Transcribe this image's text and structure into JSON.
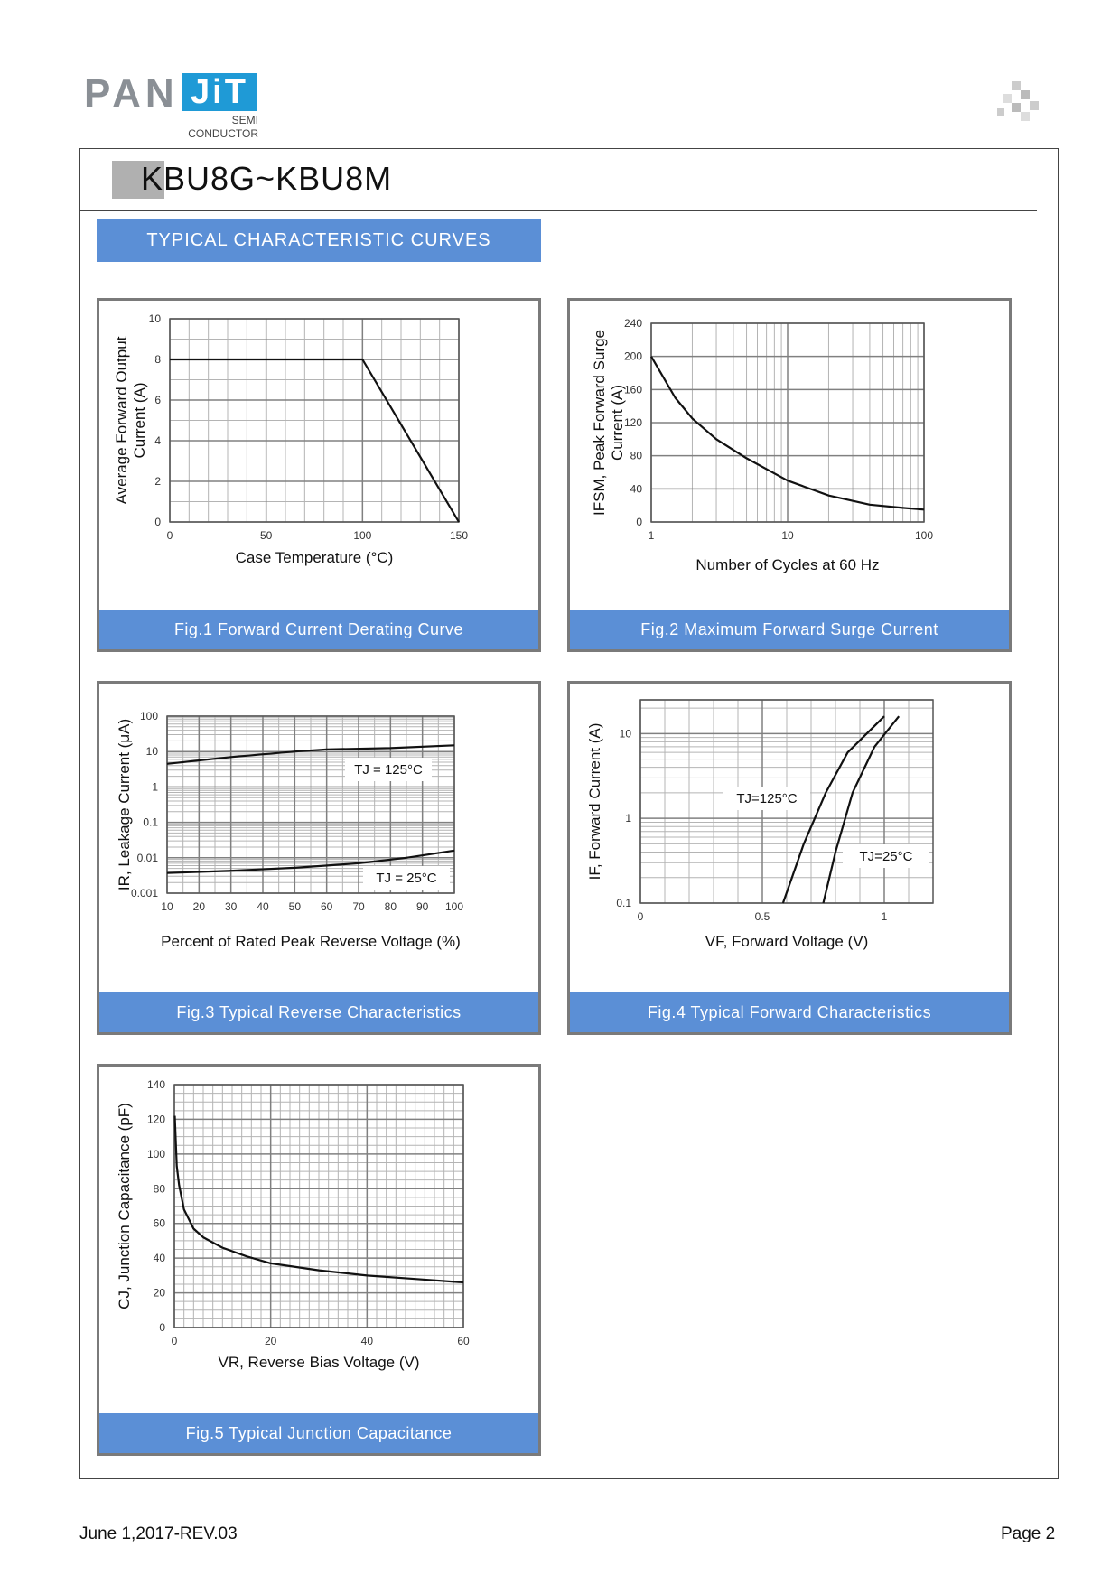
{
  "header": {
    "logo_pan": "PAN",
    "logo_jit": "JiT",
    "logo_semi": "SEMI",
    "logo_conductor": "CONDUCTOR",
    "title": "KBU8G~KBU8M",
    "section": "TYPICAL CHARACTERISTIC CURVES"
  },
  "colors": {
    "accent": "#5b8fd6",
    "logo_blue": "#1f9ad6",
    "logo_gray": "#8a8f95"
  },
  "chart_data": [
    {
      "type": "line",
      "title": "Fig.1 Forward Current Derating Curve",
      "xlabel": "Case Temperature (°C)",
      "ylabel_lines": [
        "Average Forward Output",
        "Current (A)"
      ],
      "x_ticks": [
        "0",
        "50",
        "100",
        "150"
      ],
      "y_ticks": [
        "0",
        "2",
        "4",
        "6",
        "8",
        "10"
      ],
      "xlim": [
        0,
        150
      ],
      "ylim": [
        0,
        10
      ],
      "series": [
        {
          "name": "derating",
          "x": [
            0,
            100,
            150
          ],
          "y": [
            8,
            8,
            0
          ]
        }
      ]
    },
    {
      "type": "line",
      "title": "Fig.2 Maximum Forward Surge Current",
      "xlabel": "Number of Cycles at 60 Hz",
      "ylabel_lines": [
        "IFSM, Peak Forward Surge",
        "Current (A)"
      ],
      "x_scale": "log",
      "x_ticks": [
        "1",
        "10",
        "100"
      ],
      "y_ticks": [
        "0",
        "40",
        "80",
        "120",
        "160",
        "200",
        "240"
      ],
      "xlim": [
        1,
        100
      ],
      "ylim": [
        0,
        240
      ],
      "series": [
        {
          "name": "surge",
          "x": [
            1,
            1.5,
            2,
            3,
            5,
            10,
            20,
            40,
            70,
            100
          ],
          "y": [
            200,
            150,
            125,
            100,
            77,
            50,
            32,
            21,
            17,
            15
          ]
        }
      ]
    },
    {
      "type": "line",
      "title": "Fig.3 Typical Reverse Characteristics",
      "xlabel": "Percent of Rated Peak Reverse Voltage (%)",
      "ylabel": "IR, Leakage Current (μA)",
      "y_scale": "log",
      "x_ticks": [
        "10",
        "20",
        "30",
        "40",
        "50",
        "60",
        "70",
        "80",
        "90",
        "100"
      ],
      "y_ticks": [
        "0.001",
        "0.01",
        "0.1",
        "1",
        "10",
        "100"
      ],
      "xlim": [
        10,
        100
      ],
      "ylim": [
        0.001,
        100
      ],
      "annotations": [
        "TJ = 125°C",
        "TJ = 25°C"
      ],
      "series": [
        {
          "name": "TJ = 125°C",
          "x": [
            10,
            30,
            50,
            60,
            80,
            100
          ],
          "y": [
            4.5,
            7,
            10,
            11.5,
            12.5,
            15
          ]
        },
        {
          "name": "TJ = 25°C",
          "x": [
            10,
            30,
            50,
            70,
            85,
            100
          ],
          "y": [
            0.0037,
            0.0043,
            0.0052,
            0.007,
            0.01,
            0.016
          ]
        }
      ]
    },
    {
      "type": "line",
      "title": "Fig.4 Typical Forward Characteristics",
      "xlabel": "VF, Forward Voltage (V)",
      "ylabel": "IF, Forward Current (A)",
      "y_scale": "log",
      "x_ticks": [
        "0",
        "0.5",
        "1"
      ],
      "y_ticks": [
        "0.1",
        "1",
        "10"
      ],
      "xlim": [
        0,
        1.2
      ],
      "ylim": [
        0.1,
        25
      ],
      "annotations": [
        "TJ=125°C",
        "TJ=25°C"
      ],
      "series": [
        {
          "name": "TJ=125°C",
          "x": [
            0.585,
            0.67,
            0.76,
            0.85,
            1.0
          ],
          "y": [
            0.1,
            0.5,
            2,
            6,
            16
          ]
        },
        {
          "name": "TJ=25°C",
          "x": [
            0.75,
            0.8,
            0.87,
            0.96,
            1.06
          ],
          "y": [
            0.1,
            0.4,
            2,
            7,
            16
          ]
        }
      ]
    },
    {
      "type": "line",
      "title": "Fig.5 Typical Junction Capacitance",
      "xlabel": "VR, Reverse Bias Voltage (V)",
      "ylabel": "CJ, Junction Capacitance (pF)",
      "x_ticks": [
        "0",
        "20",
        "40",
        "60"
      ],
      "y_ticks": [
        "0",
        "20",
        "40",
        "60",
        "80",
        "100",
        "120",
        "140"
      ],
      "xlim": [
        0,
        60
      ],
      "ylim": [
        0,
        140
      ],
      "series": [
        {
          "name": "capacitance",
          "x": [
            0.1,
            0.5,
            1,
            2,
            4,
            6,
            10,
            15,
            20,
            30,
            40,
            50,
            60
          ],
          "y": [
            122,
            93,
            82,
            68,
            57,
            52,
            46,
            41,
            37,
            33,
            30,
            28,
            26
          ]
        }
      ]
    }
  ],
  "footer": {
    "date": "June 1,2017-REV.03",
    "page": "Page 2"
  }
}
